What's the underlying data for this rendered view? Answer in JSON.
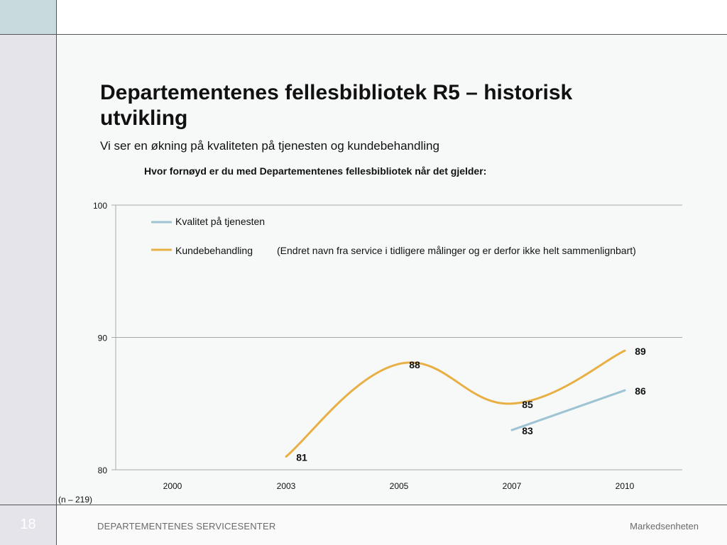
{
  "slide": {
    "number": "18",
    "title": "Departementenes fellesbibliotek R5 – historisk utvikling",
    "subtitle": "Vi ser en økning på kvaliteten på tjenesten og kundebehandling",
    "note": "(n – 219)",
    "footer_left": "DEPARTEMENTENES SERVICESENTER",
    "footer_right": "Markedsenheten"
  },
  "chart_data": {
    "type": "line",
    "title": "Hvor fornøyd er du med Departementenes fellesbibliotek når det gjelder:",
    "categories": [
      "2000",
      "2003",
      "2005",
      "2007",
      "2010"
    ],
    "ylim": [
      80,
      100
    ],
    "yticks": [
      80,
      90,
      100
    ],
    "grid": true,
    "legend_position": "top-left",
    "legend_note": "(Endret navn fra service i tidligere målinger og er derfor ikke helt sammenlignbart)",
    "series": [
      {
        "name": "Kvalitet på tjenesten",
        "color": "#9ec3d2",
        "values": [
          null,
          null,
          null,
          83,
          86
        ]
      },
      {
        "name": "Kundebehandling",
        "color": "#e8b044",
        "values": [
          null,
          81,
          88,
          85,
          89
        ]
      }
    ]
  }
}
